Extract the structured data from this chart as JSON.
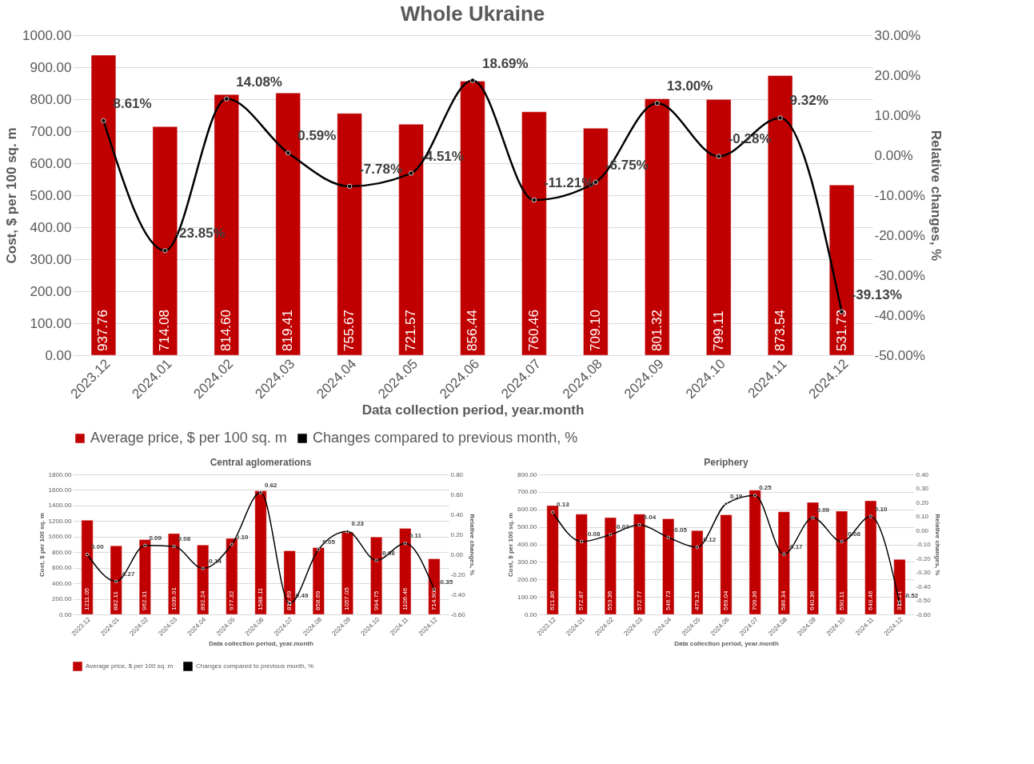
{
  "chart_data": [
    {
      "type": "bar",
      "title": "Whole Ukraine",
      "xlabel": "Data collection period, year.month",
      "ylabel": "Cost, $ per 100 sq. m",
      "y2label": "Relative changes, %",
      "categories": [
        "2023.12",
        "2024.01",
        "2024.02",
        "2024.03",
        "2024.04",
        "2024.05",
        "2024.06",
        "2024.07",
        "2024.08",
        "2024.09",
        "2024.10",
        "2024.11",
        "2024.12"
      ],
      "series": [
        {
          "name": "Average price, $ per 100 sq. m",
          "color": "#c00000",
          "values": [
            937.76,
            714.08,
            814.6,
            819.41,
            755.67,
            721.57,
            856.44,
            760.46,
            709.1,
            801.32,
            799.11,
            873.54,
            531.73
          ],
          "value_labels": [
            "937.76",
            "714.08",
            "814.60",
            "819.41",
            "755.67",
            "721.57",
            "856.44",
            "760.46",
            "709.10",
            "801.32",
            "799.11",
            "873.54",
            "531.73"
          ]
        },
        {
          "name": "Changes compared to previous month, %",
          "type": "line",
          "axis": "y2",
          "color": "#000000",
          "values": [
            8.61,
            -23.85,
            14.08,
            0.59,
            -7.78,
            -4.51,
            18.69,
            -11.21,
            -6.75,
            13.0,
            -0.28,
            9.32,
            -39.13
          ],
          "value_labels": [
            "8.61%",
            "-23.85%",
            "14.08%",
            "0.59%",
            "-7.78%",
            "-4.51%",
            "18.69%",
            "-11.21%",
            "-6.75%",
            "13.00%",
            "-0.28%",
            "9.32%",
            "-39.13%"
          ]
        }
      ],
      "ylim": [
        0,
        1000
      ],
      "yticks": [
        {
          "value": 0,
          "label": "0.00"
        },
        {
          "value": 100,
          "label": "100.00"
        },
        {
          "value": 200,
          "label": "200.00"
        },
        {
          "value": 300,
          "label": "300.00"
        },
        {
          "value": 400,
          "label": "400.00"
        },
        {
          "value": 500,
          "label": "500.00"
        },
        {
          "value": 600,
          "label": "600.00"
        },
        {
          "value": 700,
          "label": "700.00"
        },
        {
          "value": 800,
          "label": "800.00"
        },
        {
          "value": 900,
          "label": "900.00"
        },
        {
          "value": 1000,
          "label": "1000.00"
        }
      ],
      "y2lim": [
        -50,
        30
      ],
      "y2ticks": [
        {
          "value": -50,
          "label": "-50.00%"
        },
        {
          "value": -40,
          "label": "-40.00%"
        },
        {
          "value": -30,
          "label": "-30.00%"
        },
        {
          "value": -20,
          "label": "-20.00%"
        },
        {
          "value": -10,
          "label": "-10.00%"
        },
        {
          "value": 0,
          "label": "0.00%"
        },
        {
          "value": 10,
          "label": "10.00%"
        },
        {
          "value": 20,
          "label": "20.00%"
        },
        {
          "value": 30,
          "label": "30.00%"
        }
      ],
      "grid": "y",
      "legend": "bottom",
      "marker": "circle"
    },
    {
      "type": "bar",
      "title": "Central aglomerations",
      "xlabel": "Data collection period, year.month",
      "ylabel": "Cost, $ per 100 sq. m",
      "y2label": "Relative changes, %",
      "categories": [
        "2023.12",
        "2024.01",
        "2024.02",
        "2024.03",
        "2024.04",
        "2024.05",
        "2024.06",
        "2024.07",
        "2024.08",
        "2024.09",
        "2024.10",
        "2024.11",
        "2024.12"
      ],
      "series": [
        {
          "name": "Average price, $ per 100 sq. m",
          "color": "#c00000",
          "values": [
            1211.05,
            882.11,
            962.31,
            1039.91,
            892.24,
            977.32,
            1588.11,
            817.69,
            858.69,
            1057.05,
            994.75,
            1106.46,
            714.9
          ],
          "value_labels": [
            "1211.05",
            "882.11",
            "962.31",
            "1039.91",
            "892.24",
            "977.32",
            "1588.11",
            "817.69",
            "858.69",
            "1057.05",
            "994.75",
            "1106.46",
            "714.90"
          ]
        },
        {
          "name": "Changes compared to previous month, %",
          "type": "line",
          "axis": "y2",
          "color": "#000000",
          "values": [
            0.0,
            -0.27,
            0.09,
            0.08,
            -0.14,
            0.1,
            0.62,
            -0.49,
            0.05,
            0.23,
            -0.06,
            0.11,
            -0.35
          ],
          "value_labels": [
            "0.00",
            "-0.27",
            "0.09",
            "0.08",
            "-0.14",
            "0.10",
            "0.62",
            "-0.49",
            "0.05",
            "0.23",
            "-0.06",
            "0.11",
            "-0.35"
          ]
        }
      ],
      "ylim": [
        0,
        1800
      ],
      "yticks": [
        {
          "value": 0,
          "label": "0.00"
        },
        {
          "value": 200,
          "label": "200.00"
        },
        {
          "value": 400,
          "label": "400.00"
        },
        {
          "value": 600,
          "label": "600.00"
        },
        {
          "value": 800,
          "label": "800.00"
        },
        {
          "value": 1000,
          "label": "1000.00"
        },
        {
          "value": 1200,
          "label": "1200.00"
        },
        {
          "value": 1400,
          "label": "1400.00"
        },
        {
          "value": 1600,
          "label": "1600.00"
        },
        {
          "value": 1800,
          "label": "1800.00"
        }
      ],
      "y2lim": [
        -0.6,
        0.8
      ],
      "y2ticks": [
        {
          "value": -0.6,
          "label": "-0.60"
        },
        {
          "value": -0.4,
          "label": "-0.40"
        },
        {
          "value": -0.2,
          "label": "-0.20"
        },
        {
          "value": 0,
          "label": "0.00"
        },
        {
          "value": 0.2,
          "label": "0.20"
        },
        {
          "value": 0.4,
          "label": "0.40"
        },
        {
          "value": 0.6,
          "label": "0.60"
        },
        {
          "value": 0.8,
          "label": "0.80"
        }
      ],
      "grid": "y",
      "legend": "bottom",
      "marker": "circle"
    },
    {
      "type": "bar",
      "title": "Periphery",
      "xlabel": "Data collection period, year.month",
      "ylabel": "Cost, $ per 100 sq. m",
      "y2label": "Relative changes, %",
      "categories": [
        "2023.12",
        "2024.01",
        "2024.02",
        "2024.03",
        "2024.04",
        "2024.05",
        "2024.06",
        "2024.07",
        "2024.08",
        "2024.09",
        "2024.10",
        "2024.11",
        "2024.12"
      ],
      "series": [
        {
          "name": "Average price, $ per 100 sq. m",
          "color": "#c00000",
          "values": [
            621.86,
            572.87,
            553.36,
            572.77,
            546.73,
            479.21,
            569.04,
            709.36,
            586.34,
            640.36,
            590.11,
            649.46,
            314.21
          ],
          "value_labels": [
            "621.86",
            "572.87",
            "553.36",
            "572.77",
            "546.73",
            "479.21",
            "569.04",
            "709.36",
            "586.34",
            "640.36",
            "590.11",
            "649.46",
            "314.21"
          ]
        },
        {
          "name": "Changes compared to previous month, %",
          "type": "line",
          "axis": "y2",
          "color": "#000000",
          "values": [
            0.13,
            -0.08,
            -0.03,
            0.04,
            -0.05,
            -0.12,
            0.19,
            0.25,
            -0.17,
            0.09,
            -0.08,
            0.1,
            -0.52
          ],
          "value_labels": [
            "0.13",
            "-0.08",
            "-0.03",
            "0.04",
            "-0.05",
            "-0.12",
            "0.19",
            "0.25",
            "-0.17",
            "0.09",
            "-0.08",
            "0.10",
            "-0.52"
          ]
        }
      ],
      "ylim": [
        0,
        800
      ],
      "yticks": [
        {
          "value": 0,
          "label": "0.00"
        },
        {
          "value": 100,
          "label": "100.00"
        },
        {
          "value": 200,
          "label": "200.00"
        },
        {
          "value": 300,
          "label": "300.00"
        },
        {
          "value": 400,
          "label": "400.00"
        },
        {
          "value": 500,
          "label": "500.00"
        },
        {
          "value": 600,
          "label": "600.00"
        },
        {
          "value": 700,
          "label": "700.00"
        },
        {
          "value": 800,
          "label": "800.00"
        }
      ],
      "y2lim": [
        -0.6,
        0.4
      ],
      "y2ticks": [
        {
          "value": -0.6,
          "label": "-0.60"
        },
        {
          "value": -0.5,
          "label": "-0.50"
        },
        {
          "value": -0.4,
          "label": "-0.40"
        },
        {
          "value": -0.3,
          "label": "-0.30"
        },
        {
          "value": -0.2,
          "label": "-0.20"
        },
        {
          "value": -0.1,
          "label": "-0.10"
        },
        {
          "value": 0,
          "label": "0.00"
        },
        {
          "value": 0.1,
          "label": "0.10"
        },
        {
          "value": 0.2,
          "label": "0.20"
        },
        {
          "value": 0.3,
          "label": "0.30"
        },
        {
          "value": 0.4,
          "label": "0.40"
        }
      ],
      "grid": "y",
      "legend": "bottom",
      "marker": "circle"
    }
  ]
}
